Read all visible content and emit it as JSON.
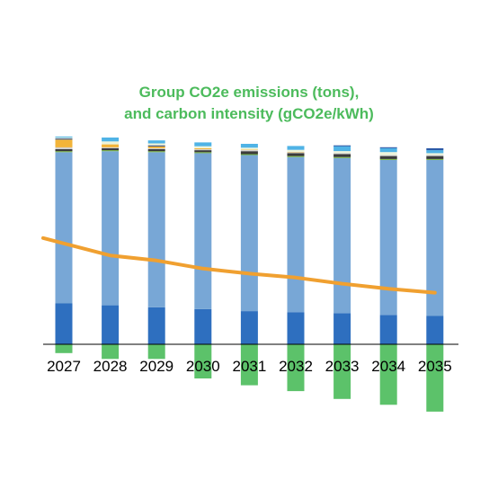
{
  "chart_data": {
    "type": "bar",
    "title_lines": [
      "Group CO2e emissions (tons),",
      "and carbon intensity (gCO2e/kWh)"
    ],
    "categories": [
      "2027",
      "2028",
      "2029",
      "2030",
      "2031",
      "2032",
      "2033",
      "2034",
      "2035"
    ],
    "stacked": true,
    "series": [
      {
        "color": "#2e6fbf",
        "values": [
          42,
          40,
          38,
          36,
          34,
          33,
          32,
          30,
          29
        ]
      },
      {
        "color": "#78a7d6",
        "values": [
          155,
          158,
          159,
          160,
          160,
          159,
          159,
          159,
          160
        ]
      },
      {
        "color": "#76b53f",
        "values": [
          1,
          1,
          1,
          1,
          1,
          1,
          1,
          1,
          1
        ]
      },
      {
        "color": "#3b3b3b",
        "values": [
          2,
          2,
          2,
          2,
          3,
          3,
          3,
          3,
          3
        ]
      },
      {
        "color": "#d0d0d0",
        "values": [
          2,
          1,
          1,
          1,
          1,
          1,
          1,
          1,
          1
        ]
      },
      {
        "color": "#f2b43a",
        "values": [
          8,
          3,
          2,
          1,
          0.5,
          0.3,
          0,
          0,
          0
        ]
      },
      {
        "color": "#1f3f7f",
        "values": [
          1,
          0,
          1,
          0,
          0,
          0,
          0,
          0,
          0
        ]
      },
      {
        "color": "#eef4da",
        "values": [
          1,
          3,
          2,
          2,
          2,
          2,
          2,
          3,
          2
        ]
      },
      {
        "color": "#4fb3e6",
        "values": [
          1,
          4,
          3,
          4,
          4,
          4,
          5,
          4,
          3
        ]
      },
      {
        "color": "#2b5aa8",
        "values": [
          0,
          0,
          0,
          0,
          0,
          0,
          1,
          1,
          2
        ]
      },
      {
        "color": "#5cc26a",
        "values": [
          -9,
          -15,
          -15,
          -35,
          -42,
          -48,
          -56,
          -62,
          -69
        ]
      }
    ],
    "line_series": {
      "color": "#f0a030",
      "values": [
        102,
        90,
        85,
        77,
        72,
        68,
        62,
        57,
        53
      ],
      "ylim": [
        0,
        350
      ]
    },
    "ylim": [
      -90,
      200
    ],
    "grid": false,
    "legend": "none"
  }
}
